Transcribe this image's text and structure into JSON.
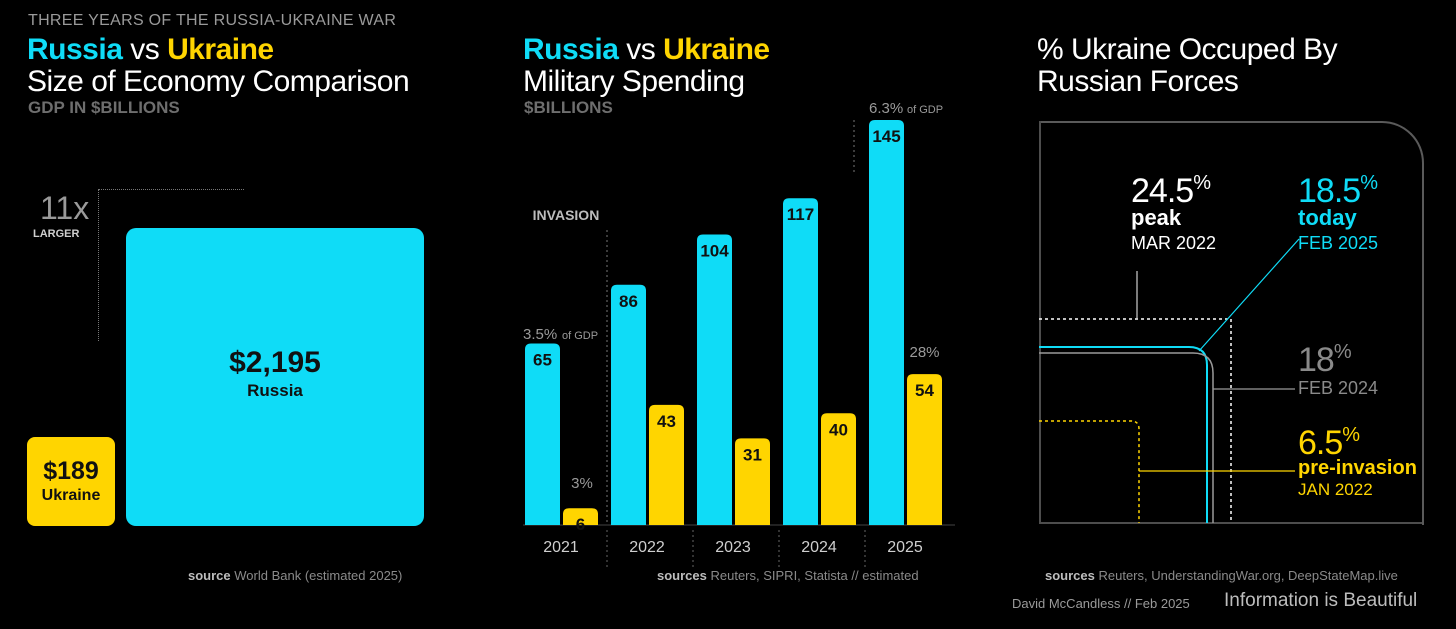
{
  "colors": {
    "russia": "#0fdcf7",
    "ukraine": "#ffd500",
    "grey": "#8a8a8a"
  },
  "supertitle": "THREE YEARS OF THE RUSSIA-UKRAINE WAR",
  "panel1": {
    "title_russia": "Russia",
    "title_vs": " vs ",
    "title_ukraine": "Ukraine",
    "title_line2": "Size of Economy Comparison",
    "subtitle": "GDP IN $BILLIONS",
    "multiplier": "11x",
    "multiplier_label": "LARGER",
    "russia_value": "$2,195",
    "russia_label": "Russia",
    "ukraine_value": "$189",
    "ukraine_label": "Ukraine",
    "source_bold": "source",
    "source_text": " World Bank (estimated 2025)"
  },
  "chart_data": {
    "type": "bar",
    "title": "Russia vs Ukraine Military Spending",
    "ylabel": "$BILLIONS",
    "categories": [
      "2021",
      "2022",
      "2023",
      "2024",
      "2025"
    ],
    "series": [
      {
        "name": "Russia",
        "values": [
          65,
          86,
          104,
          117,
          145
        ]
      },
      {
        "name": "Ukraine",
        "values": [
          6,
          43,
          31,
          40,
          54
        ]
      }
    ],
    "ylim": [
      0,
      145
    ],
    "annotations": {
      "invasion": "INVASION",
      "russia_2021_pct": "3.5%",
      "russia_2021_pct_note": "of GDP",
      "ukraine_2021_pct": "3%",
      "russia_2025_pct": "6.3%",
      "russia_2025_pct_note": "of GDP",
      "ukraine_2025_pct": "28%"
    }
  },
  "panel2": {
    "title_russia": "Russia",
    "title_vs": " vs ",
    "title_ukraine": "Ukraine",
    "title_line2": "Military Spending",
    "subtitle": "$BILLIONS",
    "source_bold": "sources",
    "source_text": " Reuters, SIPRI, Statista // estimated"
  },
  "panel3": {
    "title_line1": "% Ukraine Occuped By",
    "title_line2": "Russian Forces",
    "peak": {
      "value": "24.5",
      "unit": "%",
      "label": "peak",
      "date": "MAR 2022"
    },
    "today": {
      "value": "18.5",
      "unit": "%",
      "label": "today",
      "date": "FEB 2025"
    },
    "feb2024": {
      "value": "18",
      "unit": "%",
      "date": "FEB 2024"
    },
    "preinvasion": {
      "value": "6.5",
      "unit": "%",
      "label": "pre-invasion",
      "date": "JAN 2022"
    },
    "source_bold": "sources",
    "source_text": " Reuters, UnderstandingWar.org, DeepStateMap.live"
  },
  "footer": {
    "credit": "David McCandless // Feb 2025",
    "brand": "Information is Beautiful"
  }
}
